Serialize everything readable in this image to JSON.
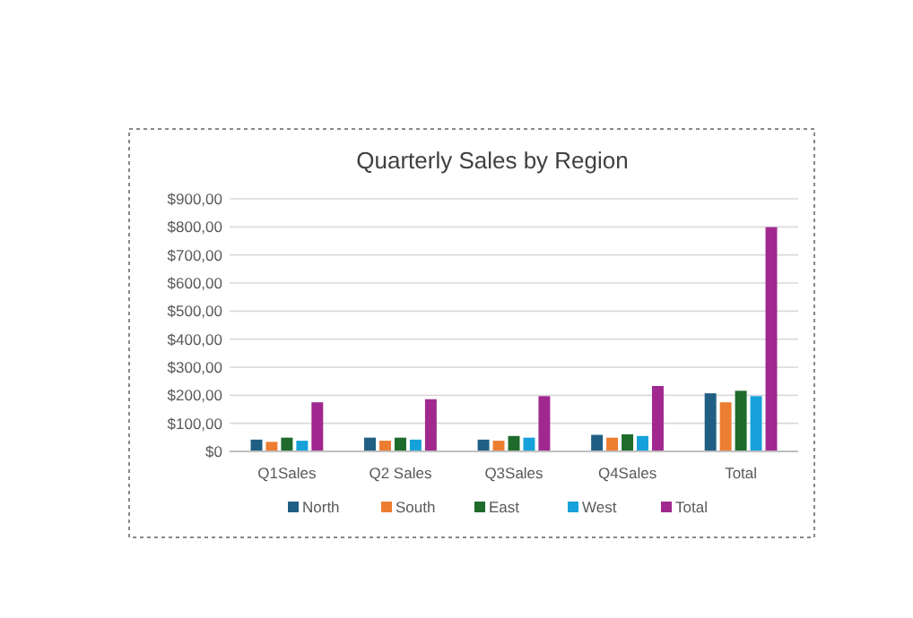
{
  "chart_data": {
    "type": "bar",
    "title": "Quarterly Sales by Region",
    "categories": [
      "Q1Sales",
      "Q2 Sales",
      "Q3Sales",
      "Q4Sales",
      "Total"
    ],
    "series": [
      {
        "name": "North",
        "color": "#1f5f83",
        "values": [
          42,
          49,
          42,
          59,
          207
        ]
      },
      {
        "name": "South",
        "color": "#ed7d31",
        "values": [
          34,
          38,
          38,
          49,
          175
        ]
      },
      {
        "name": "East",
        "color": "#1e6b2c",
        "values": [
          49,
          49,
          55,
          61,
          216
        ]
      },
      {
        "name": "West",
        "color": "#16a1db",
        "values": [
          38,
          42,
          49,
          55,
          197
        ]
      },
      {
        "name": "Total",
        "color": "#a0288e",
        "values": [
          175,
          186,
          197,
          233,
          799
        ]
      }
    ],
    "ylim": [
      0,
      900
    ],
    "yticks": [
      {
        "value": 0,
        "label": "$0"
      },
      {
        "value": 100,
        "label": "$100,00"
      },
      {
        "value": 200,
        "label": "$200,00"
      },
      {
        "value": 300,
        "label": "$300,00"
      },
      {
        "value": 400,
        "label": "$400,00"
      },
      {
        "value": 500,
        "label": "$500,00"
      },
      {
        "value": 600,
        "label": "$600,00"
      },
      {
        "value": 700,
        "label": "$700,00"
      },
      {
        "value": 800,
        "label": "$800,00"
      },
      {
        "value": 900,
        "label": "$900,00"
      }
    ],
    "grid": "y",
    "legend": "bottom"
  }
}
